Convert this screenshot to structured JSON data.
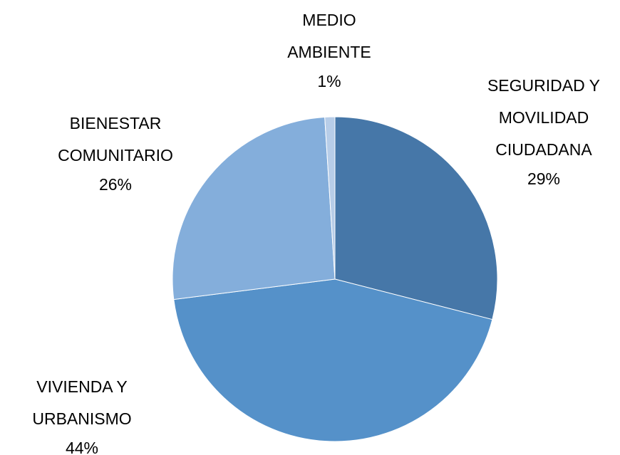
{
  "chart_data": {
    "type": "pie",
    "categories": [
      [
        "SEGURIDAD Y",
        "MOVILIDAD",
        "CIUDADANA"
      ],
      [
        "VIVIENDA Y",
        "URBANISMO"
      ],
      [
        "BIENESTAR",
        "COMUNITARIO"
      ],
      [
        "MEDIO",
        "AMBIENTE"
      ]
    ],
    "values": [
      29,
      44,
      26,
      1
    ],
    "value_labels": [
      "29%",
      "44%",
      "26%",
      "1%"
    ],
    "colors": [
      "#4677a8",
      "#5591c9",
      "#84aedb",
      "#b7cde8"
    ]
  }
}
